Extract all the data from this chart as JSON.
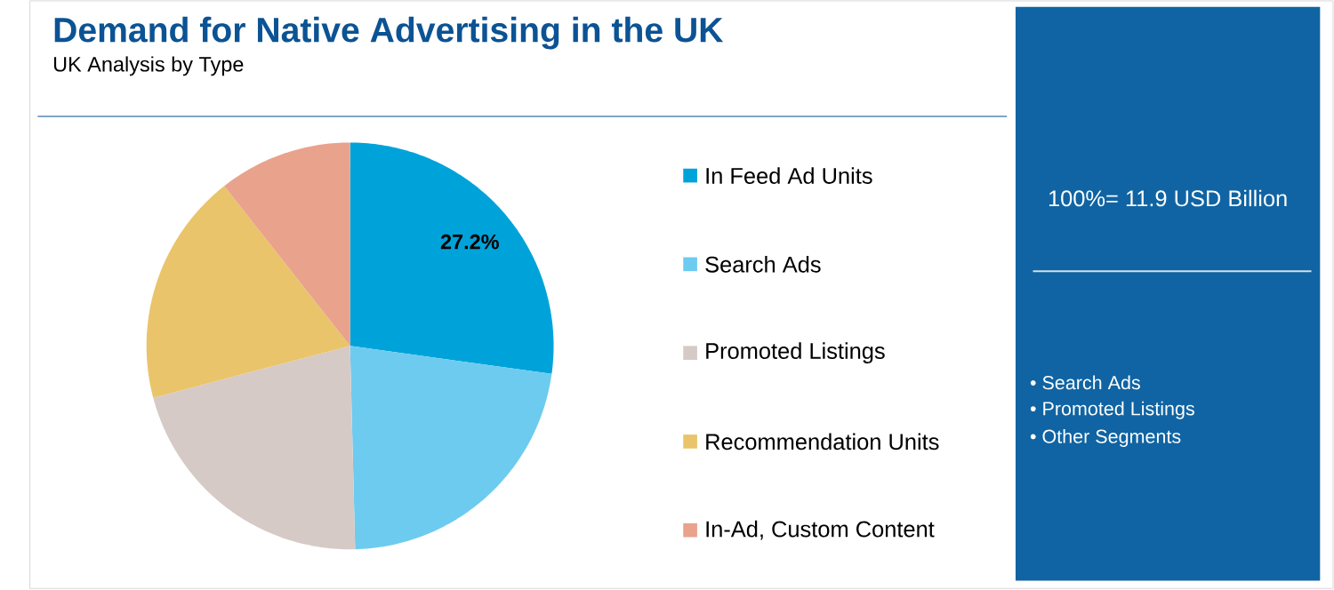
{
  "chart_data": {
    "type": "pie",
    "title": "Demand for Native Advertising in the UK",
    "subtitle": "UK Analysis by Type",
    "categories": [
      "In Feed Ad Units",
      "Search Ads",
      "Promoted Listings",
      "Recommendation Units",
      "In-Ad, Custom Content"
    ],
    "values": [
      27.2,
      22.4,
      21.3,
      18.5,
      10.6
    ],
    "colors": [
      "#00a3d9",
      "#6dcbef",
      "#d6cac6",
      "#e9c46a",
      "#e9a28c"
    ],
    "value_labels": [
      "27.2%",
      null,
      null,
      null,
      null
    ],
    "legend": "right",
    "annotations": [
      "100%= 11.9 USD Billion",
      "• Search Ads",
      "• Promoted Listings",
      "• Other Segments"
    ]
  }
}
